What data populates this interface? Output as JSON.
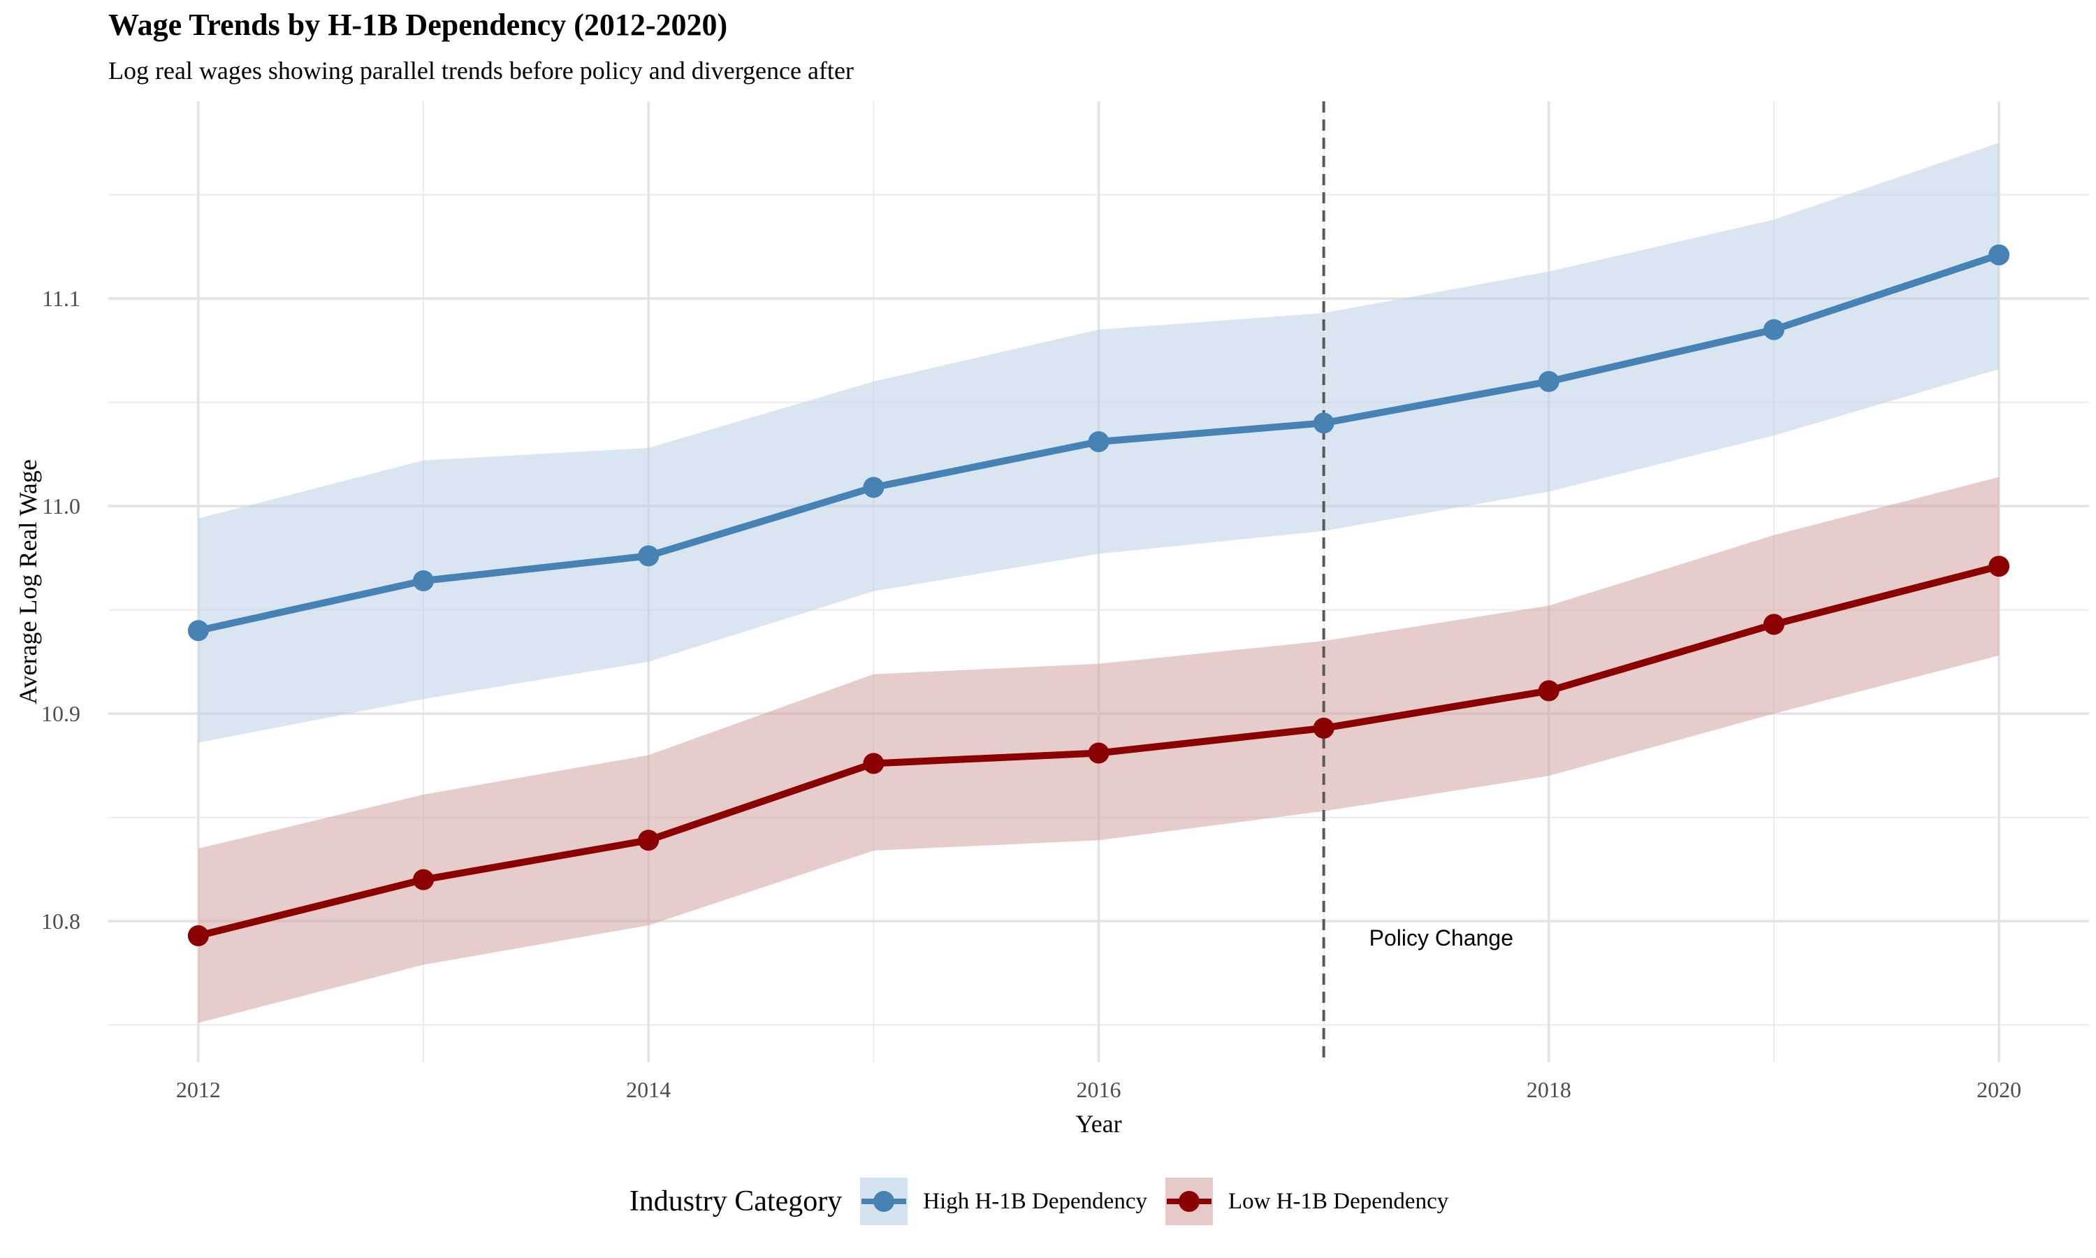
{
  "chart_data": {
    "type": "line",
    "title": "Wage Trends by H-1B Dependency (2012-2020)",
    "subtitle": "Log real wages showing parallel trends before policy and divergence after",
    "xlabel": "Year",
    "ylabel": "Average Log Real Wage",
    "x": [
      2012,
      2013,
      2014,
      2015,
      2016,
      2017,
      2018,
      2019,
      2020
    ],
    "x_ticks": [
      2012,
      2014,
      2016,
      2018,
      2020
    ],
    "y_ticks": [
      10.8,
      10.9,
      11.0,
      11.1
    ],
    "xlim": [
      2011.6,
      2020.4
    ],
    "ylim": [
      10.732,
      11.195
    ],
    "grid": true,
    "legend_position": "bottom",
    "legend_title": "Industry Category",
    "series": [
      {
        "name": "High H-1B Dependency",
        "color": "#4682B4",
        "band_color": "#b9cfe4",
        "values": [
          10.94,
          10.964,
          10.976,
          11.009,
          11.031,
          11.04,
          11.06,
          11.085,
          11.121
        ],
        "lower": [
          10.886,
          10.907,
          10.925,
          10.959,
          10.977,
          10.988,
          11.007,
          11.034,
          11.066
        ],
        "upper": [
          10.994,
          11.022,
          11.028,
          11.06,
          11.085,
          11.093,
          11.113,
          11.138,
          11.175
        ]
      },
      {
        "name": "Low H-1B Dependency",
        "color": "#8B0000",
        "band_color": "#d4a3a3",
        "values": [
          10.793,
          10.82,
          10.839,
          10.876,
          10.881,
          10.893,
          10.911,
          10.943,
          10.971
        ],
        "lower": [
          10.751,
          10.779,
          10.798,
          10.834,
          10.839,
          10.853,
          10.87,
          10.9,
          10.928
        ],
        "upper": [
          10.835,
          10.861,
          10.88,
          10.919,
          10.924,
          10.935,
          10.952,
          10.986,
          11.014
        ]
      }
    ],
    "annotations": [
      {
        "x": 2017,
        "type": "vline",
        "style": "dashed",
        "label": "Policy Change",
        "label_y": 10.792
      }
    ]
  }
}
